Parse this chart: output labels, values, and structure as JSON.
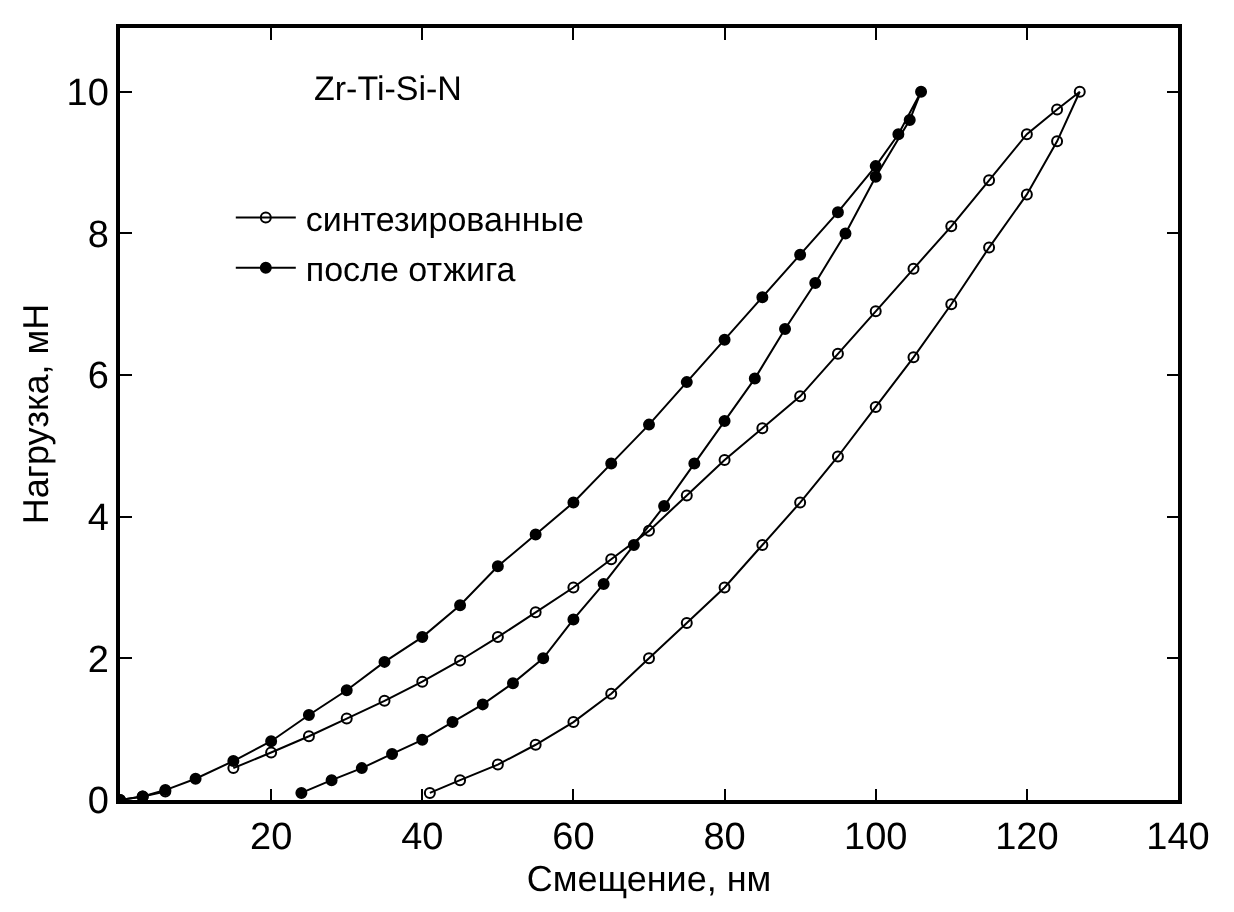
{
  "chart_data": {
    "type": "line",
    "xlabel": "Смещение, нм",
    "ylabel": "Нагрузка, мН",
    "annotations": [
      "Zr-Ti-Si-N"
    ],
    "xlim": [
      0,
      140
    ],
    "xticks": [
      {
        "value": 0,
        "label": null
      },
      20,
      40,
      60,
      80,
      100,
      120,
      140
    ],
    "ylim": [
      0,
      10.9
    ],
    "yticks": [
      0,
      2,
      4,
      6,
      8,
      10
    ],
    "legend": "top left",
    "marker": "circle",
    "line_style": "solid",
    "series": [
      {
        "name": "синтезированные",
        "color": "#000000",
        "x": [
          0,
          3,
          6,
          10,
          15,
          20,
          25,
          30,
          35,
          40,
          45,
          50,
          55,
          60,
          65,
          70,
          75,
          80,
          85,
          90,
          95,
          100,
          105,
          110,
          115,
          120,
          124,
          127,
          124,
          120,
          115,
          110,
          105,
          100,
          95,
          90,
          85,
          80,
          75,
          70,
          65,
          60,
          55,
          50,
          45,
          41
        ],
        "values": [
          0,
          0.05,
          0.12,
          null,
          0.45,
          0.67,
          0.9,
          1.15,
          1.4,
          1.67,
          1.97,
          2.3,
          2.65,
          3.0,
          3.4,
          3.8,
          4.3,
          4.8,
          5.25,
          5.7,
          6.3,
          6.9,
          7.5,
          8.1,
          8.75,
          9.4,
          9.75,
          10,
          9.3,
          8.55,
          7.8,
          7.0,
          6.25,
          5.55,
          4.85,
          4.2,
          3.6,
          3.0,
          2.5,
          2.0,
          1.5,
          1.1,
          0.78,
          0.5,
          0.28,
          0.1
        ]
      },
      {
        "name": "после отжига",
        "color": "#000000",
        "x": [
          0,
          3,
          6,
          10,
          15,
          20,
          25,
          30,
          35,
          40,
          45,
          50,
          55,
          60,
          65,
          70,
          75,
          80,
          85,
          90,
          95,
          100,
          103,
          106,
          104.5,
          100,
          96,
          92,
          88,
          84,
          80,
          76,
          72,
          68,
          64,
          60,
          56,
          52,
          48,
          44,
          40,
          36,
          32,
          28,
          24
        ],
        "values": [
          0,
          0.05,
          0.14,
          0.3,
          0.55,
          0.83,
          1.2,
          1.55,
          1.95,
          2.3,
          2.75,
          3.3,
          3.75,
          4.2,
          4.75,
          5.3,
          5.9,
          6.5,
          7.1,
          7.7,
          8.3,
          8.95,
          9.4,
          10,
          9.6,
          8.8,
          8.0,
          7.3,
          6.65,
          5.95,
          5.35,
          4.75,
          4.15,
          3.6,
          3.05,
          2.55,
          2.0,
          1.65,
          1.35,
          1.1,
          0.85,
          0.65,
          0.45,
          0.28,
          0.1
        ]
      }
    ]
  }
}
